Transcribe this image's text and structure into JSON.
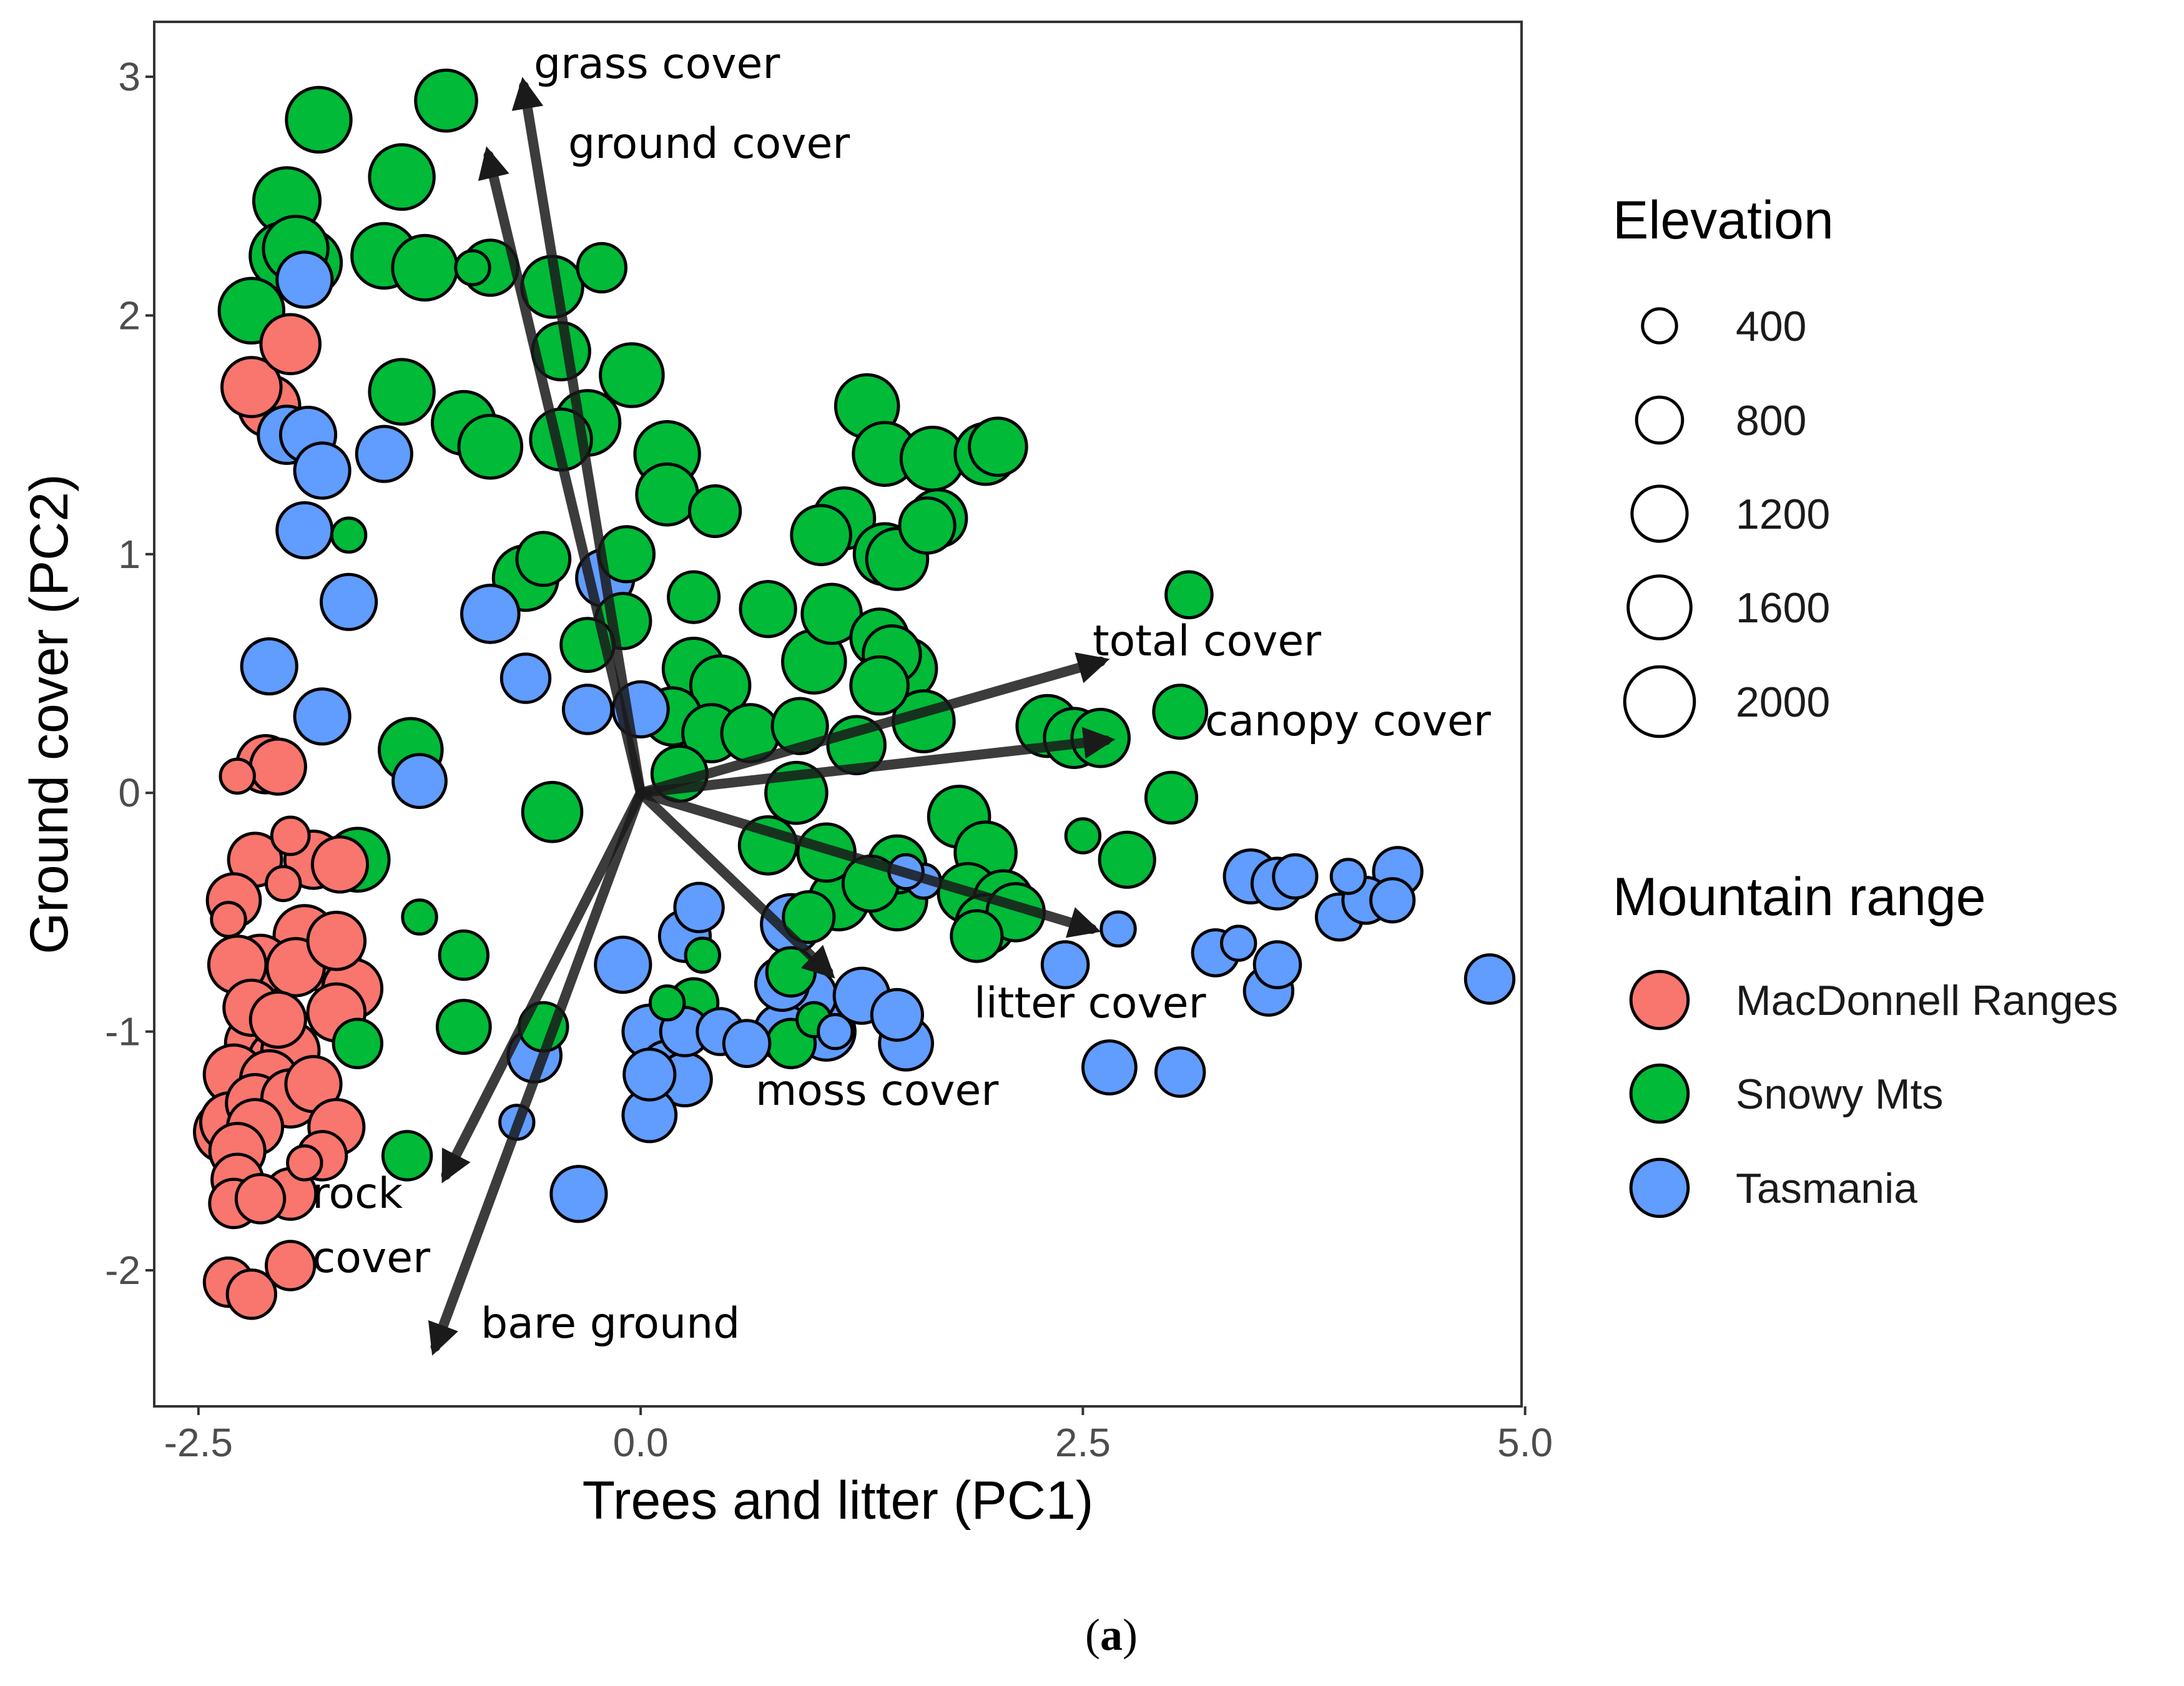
{
  "chart_data": {
    "type": "scatter",
    "title": "",
    "xlabel": "Trees and litter (PC1)",
    "ylabel": "Ground cover (PC2)",
    "xlim": [
      -2.75,
      4.98
    ],
    "ylim": [
      -2.57,
      3.23
    ],
    "x_ticks": [
      "-2.5",
      "0.0",
      "2.5",
      "5.0"
    ],
    "x_tick_values": [
      -2.5,
      0.0,
      2.5,
      5.0
    ],
    "y_ticks": [
      "-2",
      "-1",
      "0",
      "1",
      "2",
      "3"
    ],
    "y_tick_values": [
      -2,
      -1,
      0,
      1,
      2,
      3
    ],
    "grid": false,
    "caption_bold": "a",
    "caption_open": "(",
    "caption_close": ")",
    "colors": {
      "MacDonnell Ranges": "#f8766d",
      "Snowy Mts": "#00ba38",
      "Tasmania": "#619cff",
      "arrow": "#333333"
    },
    "loadings": [
      {
        "name": "grass cover",
        "x": -0.66,
        "y": 2.96,
        "label_lines": [
          "grass cover"
        ]
      },
      {
        "name": "ground cover",
        "x": -0.86,
        "y": 2.67,
        "label_lines": [
          "ground cover"
        ]
      },
      {
        "name": "total cover",
        "x": 2.6,
        "y": 0.55,
        "label_lines": [
          "total cover"
        ]
      },
      {
        "name": "canopy cover",
        "x": 2.63,
        "y": 0.22,
        "label_lines": [
          "canopy cover"
        ]
      },
      {
        "name": "litter cover",
        "x": 2.55,
        "y": -0.57,
        "label_lines": [
          "litter cover"
        ]
      },
      {
        "name": "moss cover",
        "x": 1.06,
        "y": -0.75,
        "label_lines": [
          "moss cover"
        ]
      },
      {
        "name": "rock cover",
        "x": -1.1,
        "y": -1.6,
        "label_lines": [
          "rock",
          "cover"
        ]
      },
      {
        "name": "bare ground",
        "x": -1.16,
        "y": -2.32,
        "label_lines": [
          "bare ground"
        ]
      }
    ],
    "size_legend": {
      "title": "Elevation",
      "values": [
        400,
        800,
        1200,
        1600,
        2000
      ],
      "labels": [
        "400",
        "800",
        "1200",
        "1600",
        "2000"
      ]
    },
    "color_legend": {
      "title": "Mountain range",
      "labels": [
        "MacDonnell Ranges",
        "Snowy Mts",
        "Tasmania"
      ]
    },
    "series": [
      {
        "name": "MacDonnell Ranges",
        "points": [
          [
            -2.2,
            1.7,
            1400
          ],
          [
            -2.1,
            1.62,
            1500
          ],
          [
            -1.98,
            1.88,
            1400
          ],
          [
            -2.12,
            0.12,
            1300
          ],
          [
            -2.05,
            0.11,
            1200
          ],
          [
            -2.28,
            0.07,
            400
          ],
          [
            -1.85,
            -0.28,
            1300
          ],
          [
            -2.18,
            -0.28,
            1100
          ],
          [
            -1.98,
            -0.18,
            500
          ],
          [
            -1.7,
            -0.3,
            1200
          ],
          [
            -2.3,
            -0.45,
            1100
          ],
          [
            -2.33,
            -0.53,
            400
          ],
          [
            -2.02,
            -0.38,
            400
          ],
          [
            -1.9,
            -0.6,
            1500
          ],
          [
            -1.95,
            -0.73,
            1300
          ],
          [
            -2.28,
            -0.72,
            1300
          ],
          [
            -2.15,
            -0.72,
            1400
          ],
          [
            -1.72,
            -0.62,
            1300
          ],
          [
            -1.75,
            -0.72,
            1400
          ],
          [
            -1.63,
            -0.82,
            1400
          ],
          [
            -1.72,
            -0.92,
            1300
          ],
          [
            -2.2,
            -0.9,
            1200
          ],
          [
            -2.05,
            -0.95,
            1200
          ],
          [
            -2.18,
            -1.05,
            1400
          ],
          [
            -1.98,
            -1.08,
            1300
          ],
          [
            -2.05,
            -1.12,
            1400
          ],
          [
            -2.3,
            -1.18,
            1400
          ],
          [
            -2.1,
            -1.2,
            1300
          ],
          [
            -1.85,
            -1.22,
            1200
          ],
          [
            -2.18,
            -1.3,
            1300
          ],
          [
            -1.98,
            -1.28,
            1300
          ],
          [
            -2.32,
            -1.38,
            1400
          ],
          [
            -2.35,
            -1.42,
            1500
          ],
          [
            -2.18,
            -1.4,
            1200
          ],
          [
            -1.72,
            -1.4,
            1200
          ],
          [
            -2.28,
            -1.5,
            1200
          ],
          [
            -2.28,
            -1.62,
            1000
          ],
          [
            -2.3,
            -1.72,
            900
          ],
          [
            -2.15,
            -1.7,
            900
          ],
          [
            -1.98,
            -1.68,
            1000
          ],
          [
            -1.8,
            -1.52,
            900
          ],
          [
            -1.9,
            -1.55,
            400
          ],
          [
            -2.33,
            -2.05,
            900
          ],
          [
            -2.2,
            -2.1,
            900
          ],
          [
            -1.98,
            -1.98,
            900
          ]
        ]
      },
      {
        "name": "Snowy Mts",
        "points": [
          [
            -1.1,
            2.9,
            1500
          ],
          [
            -1.82,
            2.82,
            1700
          ],
          [
            -2.0,
            2.48,
            1800
          ],
          [
            -2.02,
            2.25,
            1800
          ],
          [
            -1.88,
            2.22,
            1800
          ],
          [
            -1.95,
            2.28,
            1700
          ],
          [
            -1.35,
            2.58,
            1700
          ],
          [
            -1.45,
            2.25,
            1700
          ],
          [
            -1.22,
            2.2,
            1700
          ],
          [
            -2.2,
            2.02,
            1700
          ],
          [
            -0.85,
            2.2,
            1200
          ],
          [
            -0.95,
            2.2,
            400
          ],
          [
            -0.5,
            2.12,
            1500
          ],
          [
            -0.22,
            2.2,
            900
          ],
          [
            -0.45,
            1.85,
            1300
          ],
          [
            -0.05,
            1.75,
            1600
          ],
          [
            -1.35,
            1.68,
            1700
          ],
          [
            -1.0,
            1.55,
            1600
          ],
          [
            -0.85,
            1.45,
            1600
          ],
          [
            -0.3,
            1.55,
            1700
          ],
          [
            -0.45,
            1.48,
            1500
          ],
          [
            0.15,
            1.42,
            1700
          ],
          [
            0.15,
            1.25,
            1500
          ],
          [
            0.42,
            1.18,
            1000
          ],
          [
            -0.55,
            0.98,
            1100
          ],
          [
            -0.08,
            1.0,
            1200
          ],
          [
            -0.65,
            0.9,
            1700
          ],
          [
            -1.65,
            1.08,
            400
          ],
          [
            1.28,
            1.62,
            1600
          ],
          [
            1.38,
            1.42,
            1600
          ],
          [
            1.65,
            1.4,
            1600
          ],
          [
            1.95,
            1.42,
            1500
          ],
          [
            2.02,
            1.45,
            1300
          ],
          [
            1.68,
            1.15,
            1300
          ],
          [
            1.62,
            1.12,
            1200
          ],
          [
            1.02,
            1.08,
            1400
          ],
          [
            1.15,
            1.15,
            1500
          ],
          [
            1.38,
            1.0,
            1500
          ],
          [
            1.45,
            0.98,
            1500
          ],
          [
            0.3,
            0.82,
            1000
          ],
          [
            0.72,
            0.77,
            1200
          ],
          [
            1.08,
            0.75,
            1400
          ],
          [
            3.1,
            0.83,
            800
          ],
          [
            -0.3,
            0.62,
            1100
          ],
          [
            -0.1,
            0.72,
            1200
          ],
          [
            0.3,
            0.52,
            1500
          ],
          [
            0.45,
            0.45,
            1400
          ],
          [
            0.98,
            0.55,
            1600
          ],
          [
            1.35,
            0.65,
            1300
          ],
          [
            1.42,
            0.58,
            1300
          ],
          [
            1.5,
            0.52,
            1500
          ],
          [
            1.35,
            0.45,
            1300
          ],
          [
            0.18,
            0.32,
            1300
          ],
          [
            0.4,
            0.25,
            1300
          ],
          [
            0.62,
            0.25,
            1300
          ],
          [
            0.9,
            0.28,
            1200
          ],
          [
            1.6,
            0.3,
            1500
          ],
          [
            1.22,
            0.2,
            1300
          ],
          [
            2.3,
            0.28,
            1500
          ],
          [
            2.45,
            0.23,
            1400
          ],
          [
            2.6,
            0.23,
            1300
          ],
          [
            3.05,
            0.34,
            1100
          ],
          [
            -1.3,
            0.18,
            1600
          ],
          [
            0.22,
            0.08,
            1200
          ],
          [
            0.88,
            -0.0,
            1500
          ],
          [
            3.0,
            -0.02,
            1000
          ],
          [
            -0.5,
            -0.08,
            1400
          ],
          [
            1.8,
            -0.1,
            1500
          ],
          [
            -1.6,
            -0.28,
            1600
          ],
          [
            0.72,
            -0.22,
            1300
          ],
          [
            1.05,
            -0.25,
            1300
          ],
          [
            1.45,
            -0.3,
            1300
          ],
          [
            1.95,
            -0.25,
            1500
          ],
          [
            2.75,
            -0.28,
            1200
          ],
          [
            1.12,
            -0.45,
            1400
          ],
          [
            1.3,
            -0.38,
            1200
          ],
          [
            1.45,
            -0.45,
            1400
          ],
          [
            1.85,
            -0.42,
            1400
          ],
          [
            2.05,
            -0.45,
            1400
          ],
          [
            1.95,
            -0.55,
            1400
          ],
          [
            2.12,
            -0.5,
            1300
          ],
          [
            1.9,
            -0.6,
            1000
          ],
          [
            -1.25,
            -0.52,
            400
          ],
          [
            -1.0,
            -0.68,
            900
          ],
          [
            0.35,
            -0.68,
            400
          ],
          [
            0.95,
            -0.52,
            1000
          ],
          [
            -1.0,
            -0.98,
            1100
          ],
          [
            -0.55,
            -0.98,
            900
          ],
          [
            0.3,
            -0.88,
            900
          ],
          [
            0.85,
            -0.75,
            900
          ],
          [
            0.85,
            -1.05,
            900
          ],
          [
            -1.6,
            -1.05,
            900
          ],
          [
            -1.32,
            -1.52,
            900
          ],
          [
            2.5,
            -0.18,
            400
          ],
          [
            0.98,
            -0.95,
            400
          ],
          [
            0.15,
            -0.88,
            400
          ]
        ]
      },
      {
        "name": "Tasmania",
        "points": [
          [
            -1.9,
            2.15,
            1200
          ],
          [
            -2.0,
            1.5,
            1300
          ],
          [
            -1.88,
            1.5,
            1200
          ],
          [
            -1.8,
            1.35,
            1200
          ],
          [
            -1.45,
            1.42,
            1200
          ],
          [
            -1.9,
            1.1,
            1200
          ],
          [
            -1.65,
            0.8,
            1200
          ],
          [
            -0.85,
            0.75,
            1300
          ],
          [
            -0.2,
            0.9,
            1300
          ],
          [
            -2.1,
            0.53,
            1200
          ],
          [
            -1.8,
            0.32,
            1200
          ],
          [
            -0.65,
            0.48,
            900
          ],
          [
            -0.3,
            0.35,
            900
          ],
          [
            0.0,
            0.35,
            1200
          ],
          [
            -1.25,
            0.05,
            1100
          ],
          [
            0.85,
            -0.55,
            1400
          ],
          [
            0.25,
            -0.6,
            1000
          ],
          [
            0.33,
            -0.48,
            900
          ],
          [
            -0.1,
            -0.72,
            1200
          ],
          [
            0.8,
            -0.8,
            1100
          ],
          [
            0.95,
            -0.85,
            1200
          ],
          [
            1.25,
            -0.85,
            1200
          ],
          [
            1.45,
            -0.93,
            1000
          ],
          [
            0.8,
            -1.0,
            1200
          ],
          [
            1.05,
            -1.0,
            1300
          ],
          [
            0.05,
            -1.0,
            1100
          ],
          [
            0.25,
            -1.0,
            900
          ],
          [
            0.45,
            -1.0,
            800
          ],
          [
            0.6,
            -1.05,
            800
          ],
          [
            1.5,
            -1.05,
            1100
          ],
          [
            -0.6,
            -1.1,
            1100
          ],
          [
            0.05,
            -1.18,
            1000
          ],
          [
            0.15,
            -1.15,
            1100
          ],
          [
            0.25,
            -1.2,
            1100
          ],
          [
            0.05,
            -1.35,
            1100
          ],
          [
            -0.35,
            -1.68,
            1200
          ],
          [
            2.4,
            -0.72,
            800
          ],
          [
            2.65,
            -1.15,
            1100
          ],
          [
            3.05,
            -1.17,
            900
          ],
          [
            3.25,
            -0.67,
            800
          ],
          [
            3.45,
            -0.35,
            1100
          ],
          [
            3.6,
            -0.38,
            1000
          ],
          [
            3.7,
            -0.35,
            700
          ],
          [
            3.6,
            -0.72,
            800
          ],
          [
            3.55,
            -0.83,
            900
          ],
          [
            3.95,
            -0.52,
            800
          ],
          [
            4.1,
            -0.45,
            800
          ],
          [
            4.25,
            -0.45,
            700
          ],
          [
            4.28,
            -0.33,
            900
          ],
          [
            4.8,
            -0.78,
            900
          ],
          [
            4.0,
            -0.35,
            400
          ],
          [
            2.7,
            -0.57,
            400
          ],
          [
            3.38,
            -0.63,
            400
          ],
          [
            1.6,
            -0.37,
            400
          ],
          [
            1.1,
            -1.0,
            400
          ],
          [
            -0.7,
            -1.38,
            400
          ],
          [
            1.5,
            -0.33,
            400
          ]
        ]
      }
    ]
  }
}
